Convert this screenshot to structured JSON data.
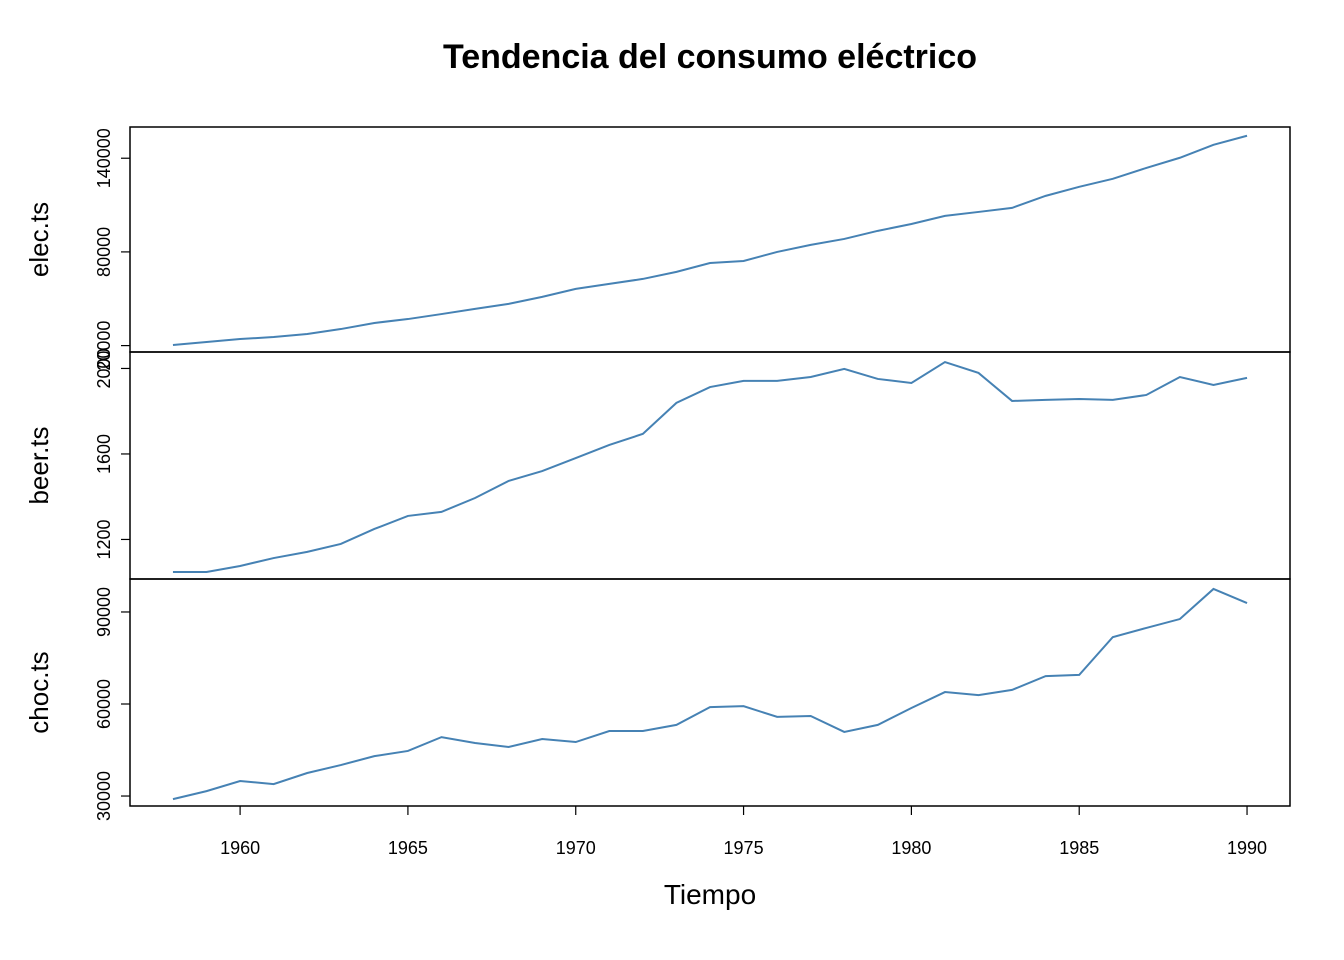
{
  "chart_data": {
    "type": "line",
    "title": "Tendencia del consumo eléctrico",
    "xlabel": "Tiempo",
    "color": "#4682b4",
    "x": [
      1958,
      1959,
      1960,
      1961,
      1962,
      1963,
      1964,
      1965,
      1966,
      1967,
      1968,
      1969,
      1970,
      1971,
      1972,
      1973,
      1974,
      1975,
      1976,
      1977,
      1978,
      1979,
      1980,
      1981,
      1982,
      1983,
      1984,
      1985,
      1986,
      1987,
      1988,
      1989,
      1990
    ],
    "xlim": [
      1956.72,
      1991.28
    ],
    "xticks": [
      1960,
      1965,
      1970,
      1975,
      1980,
      1985,
      1990
    ],
    "panels": [
      {
        "ylabel": "elec.ts",
        "ylim": [
          15900,
          160000
        ],
        "yticks": [
          20000,
          80000,
          140000
        ],
        "values": [
          20400,
          22300,
          24200,
          25500,
          27400,
          30600,
          34500,
          37000,
          40200,
          43500,
          46700,
          51200,
          56300,
          59500,
          62700,
          67200,
          72900,
          74200,
          80000,
          84500,
          88300,
          93500,
          97900,
          103100,
          105600,
          108200,
          115900,
          121700,
          126800,
          133800,
          140300,
          148600,
          154400
        ]
      },
      {
        "ylabel": "beer.ts",
        "ylim": [
          1015,
          2077
        ],
        "yticks": [
          1200,
          1600,
          2000
        ],
        "values": [
          1048,
          1048,
          1076,
          1113,
          1142,
          1179,
          1249,
          1310,
          1329,
          1394,
          1474,
          1520,
          1581,
          1642,
          1694,
          1839,
          1913,
          1942,
          1942,
          1960,
          1998,
          1951,
          1932,
          2030,
          1979,
          1848,
          1853,
          1857,
          1853,
          1876,
          1960,
          1923,
          1956
        ]
      },
      {
        "ylabel": "choc.ts",
        "ylim": [
          26750,
          100750
        ],
        "yticks": [
          30000,
          60000,
          90000
        ],
        "values": [
          29000,
          31600,
          34900,
          33900,
          37500,
          40100,
          43000,
          44700,
          49200,
          47300,
          46000,
          48600,
          47600,
          51200,
          51200,
          53200,
          59000,
          59300,
          55800,
          56100,
          50900,
          53200,
          58700,
          63900,
          62900,
          64600,
          69100,
          69500,
          81800,
          84800,
          87700,
          97500,
          92900
        ]
      }
    ]
  }
}
